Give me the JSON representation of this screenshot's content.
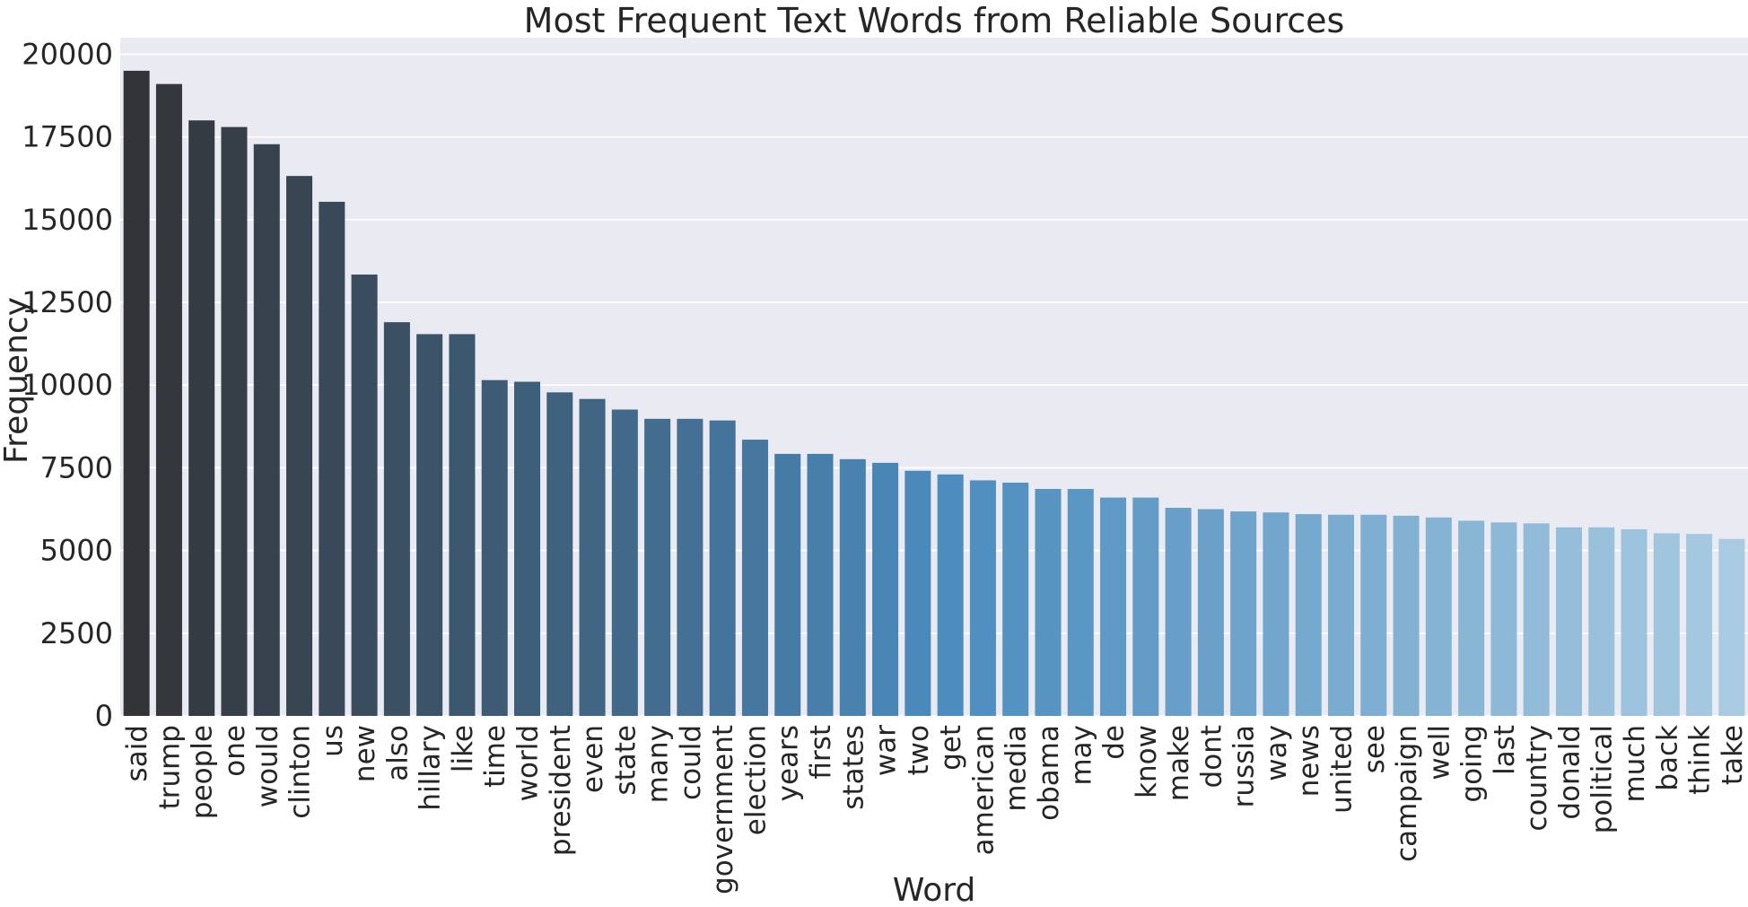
{
  "chart_data": {
    "type": "bar",
    "title": "Most Frequent Text Words from Reliable Sources",
    "xlabel": "Word",
    "ylabel": "Frequency",
    "ylim": [
      0,
      20500
    ],
    "yticks": [
      0,
      2500,
      5000,
      7500,
      10000,
      12500,
      15000,
      17500,
      20000
    ],
    "grid": true,
    "palette": "Blues_d",
    "colors": {
      "plot_bg": "#eaeaf2",
      "grid": "#ffffff",
      "bar_dark": "#333438",
      "bar_mid": "#4a8bbd",
      "bar_light": "#a8cbe1"
    },
    "categories": [
      "said",
      "trump",
      "people",
      "one",
      "would",
      "clinton",
      "us",
      "new",
      "also",
      "hillary",
      "like",
      "time",
      "world",
      "president",
      "even",
      "state",
      "many",
      "could",
      "government",
      "election",
      "years",
      "first",
      "states",
      "war",
      "two",
      "get",
      "american",
      "media",
      "obama",
      "may",
      "de",
      "know",
      "make",
      "dont",
      "russia",
      "way",
      "news",
      "united",
      "see",
      "campaign",
      "well",
      "going",
      "last",
      "country",
      "donald",
      "political",
      "much",
      "back",
      "think",
      "take"
    ],
    "values": [
      19500,
      19100,
      18000,
      17800,
      17280,
      16320,
      15540,
      13340,
      11900,
      11540,
      11540,
      10150,
      10100,
      9780,
      9580,
      9260,
      8980,
      8980,
      8930,
      8350,
      7920,
      7920,
      7760,
      7650,
      7410,
      7300,
      7120,
      7050,
      6860,
      6860,
      6600,
      6600,
      6290,
      6250,
      6180,
      6150,
      6100,
      6080,
      6080,
      6050,
      6000,
      5900,
      5850,
      5820,
      5700,
      5700,
      5640,
      5520,
      5500,
      5350
    ]
  }
}
